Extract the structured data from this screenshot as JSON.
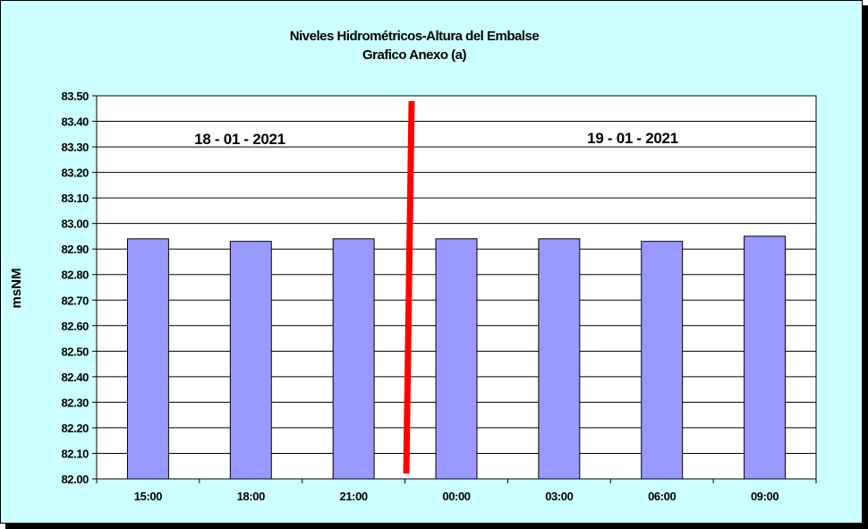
{
  "chart_data": {
    "type": "bar",
    "title": "Niveles Hidrométricos-Altura del Embalse",
    "subtitle": "Grafico Anexo (a)",
    "xlabel": "",
    "ylabel": "msNM",
    "categories": [
      "15:00",
      "18:00",
      "21:00",
      "00:00",
      "03:00",
      "06:00",
      "09:00"
    ],
    "values": [
      82.94,
      82.93,
      82.94,
      82.94,
      82.94,
      82.93,
      82.95
    ],
    "ylim": [
      82.0,
      83.5
    ],
    "yticks": [
      "82.00",
      "82.10",
      "82.20",
      "82.30",
      "82.40",
      "82.50",
      "82.60",
      "82.70",
      "82.80",
      "82.90",
      "83.00",
      "83.10",
      "83.20",
      "83.30",
      "83.40",
      "83.50"
    ],
    "grid": true,
    "legend": "none",
    "annotations": [
      "18 - 01 - 2021",
      "19 - 01 - 2021"
    ],
    "colors": {
      "bar": "#9999ff",
      "divider": "#ff0000",
      "background": "#ccffff",
      "plot": "#ffffff"
    }
  }
}
